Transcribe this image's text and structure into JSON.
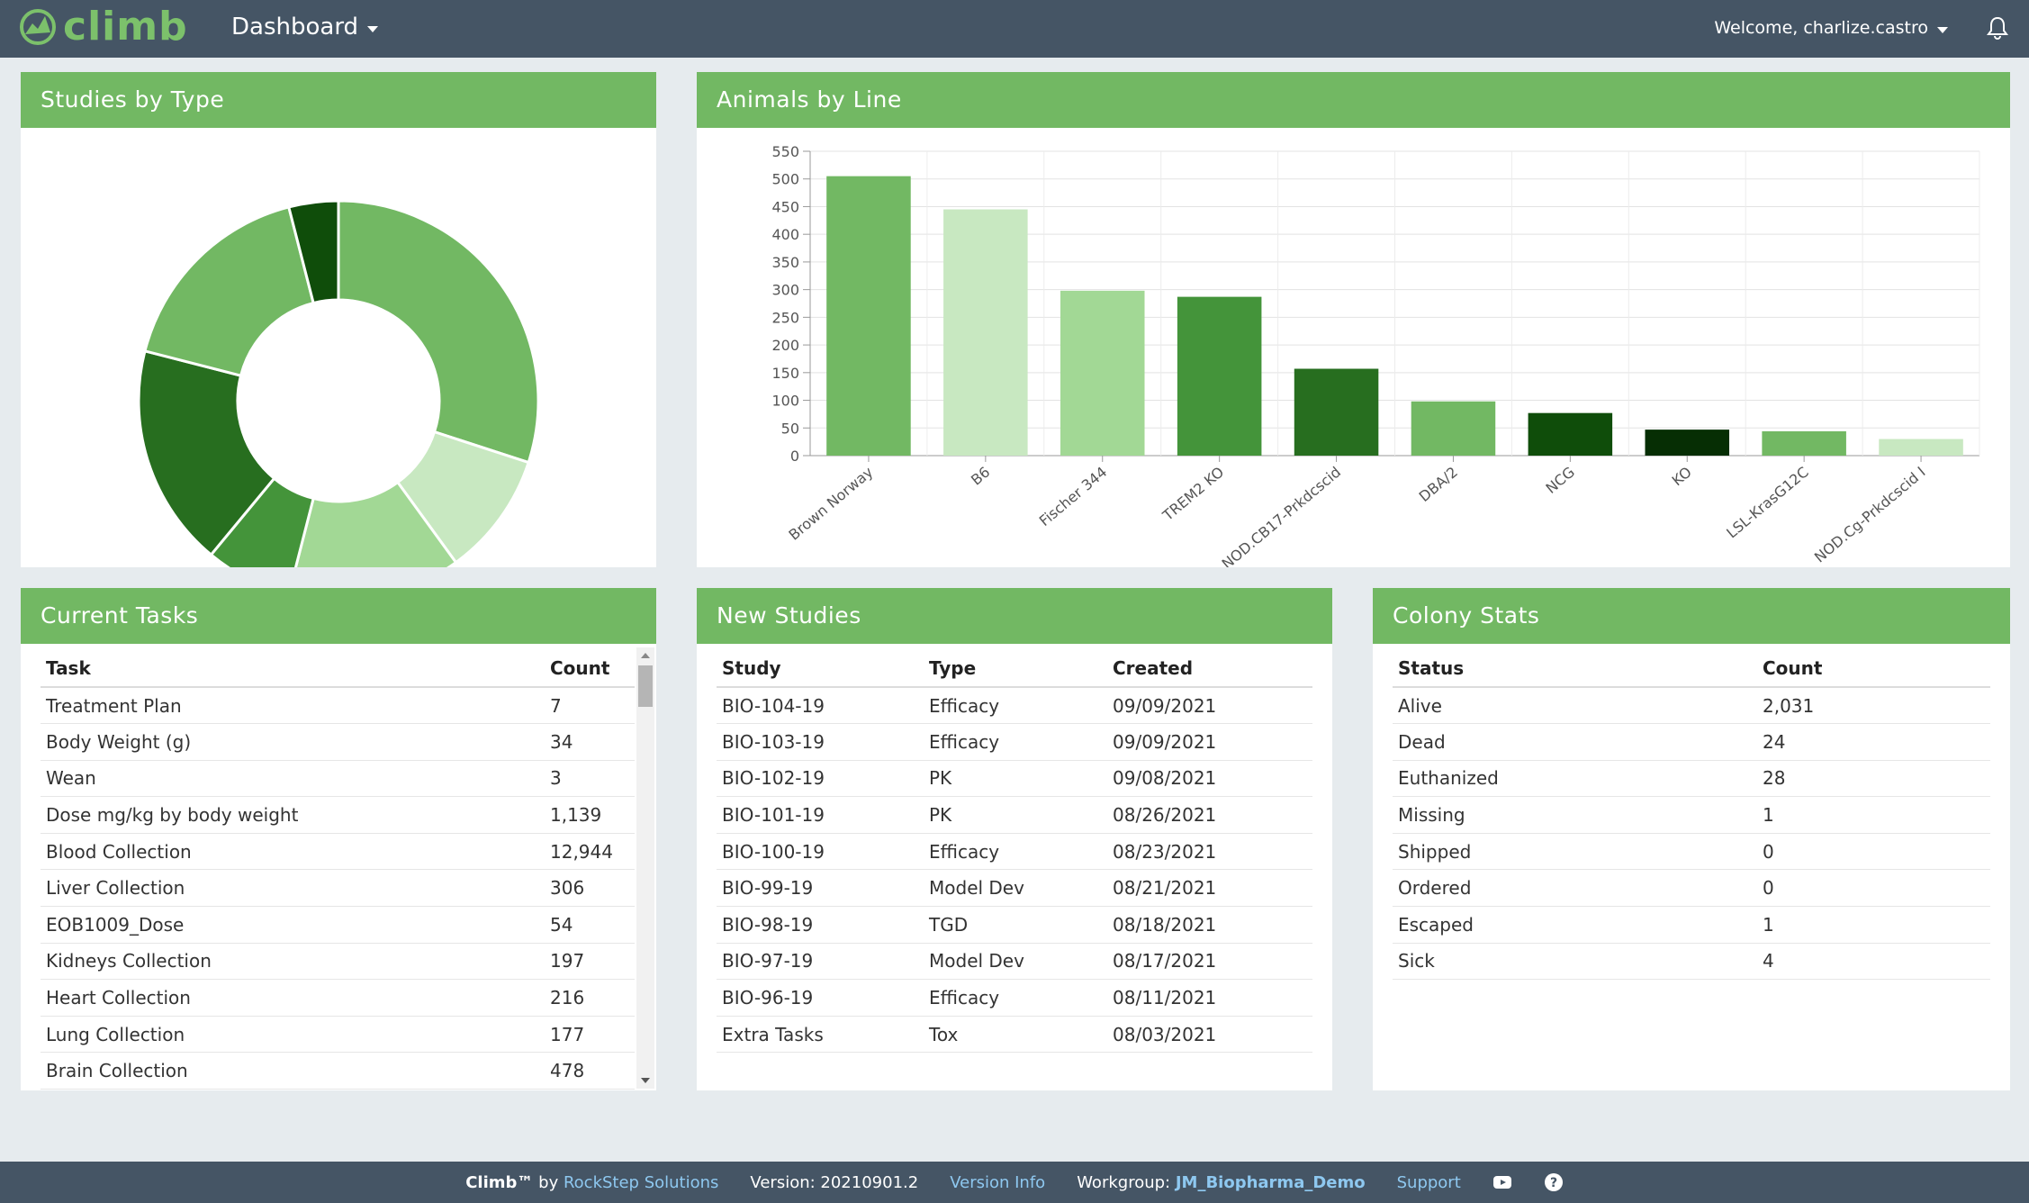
{
  "app": {
    "logo_text": "climb",
    "nav_label": "Dashboard",
    "welcome": "Welcome, charlize.castro"
  },
  "colors": {
    "navbar": "#455565",
    "panel_header": "#72b863",
    "link": "#8ec8f0"
  },
  "panels": {
    "studies_title": "Studies by Type",
    "animals_title": "Animals by Line",
    "tasks_title": "Current Tasks",
    "new_studies_title": "New Studies",
    "colony_title": "Colony Stats"
  },
  "chart_data": [
    {
      "type": "pie",
      "title": "Studies by Type",
      "donut": true,
      "slices": [
        {
          "value": 30,
          "color": "#72b863"
        },
        {
          "value": 10,
          "color": "#c8e8c1"
        },
        {
          "value": 14,
          "color": "#a2d895"
        },
        {
          "value": 7,
          "color": "#44943a"
        },
        {
          "value": 18,
          "color": "#276e1f"
        },
        {
          "value": 17,
          "color": "#72b863"
        },
        {
          "value": 4,
          "color": "#0f4d0a"
        }
      ]
    },
    {
      "type": "bar",
      "title": "Animals by Line",
      "categories": [
        "Brown Norway",
        "B6",
        "Fischer 344",
        "TREM2 KO",
        "NOD.CB17-Prkdcscid",
        "DBA/2",
        "NCG",
        "KO",
        "LSL-KrasG12C",
        "NOD.Cg-Prkdcscid I"
      ],
      "values": [
        505,
        445,
        298,
        287,
        157,
        98,
        77,
        47,
        44,
        30
      ],
      "colors": [
        "#72b863",
        "#c8e8c1",
        "#a2d895",
        "#44943a",
        "#276e1f",
        "#72b863",
        "#0f4d0a",
        "#062e04",
        "#72b863",
        "#c8e8c1"
      ],
      "ylim": [
        0,
        550
      ],
      "yticks": [
        0,
        50,
        100,
        150,
        200,
        250,
        300,
        350,
        400,
        450,
        500,
        550
      ],
      "grid": true
    }
  ],
  "tasks": {
    "headers": [
      "Task",
      "Count"
    ],
    "rows": [
      [
        "Treatment Plan",
        "7"
      ],
      [
        "Body Weight (g)",
        "34"
      ],
      [
        "Wean",
        "3"
      ],
      [
        "Dose mg/kg by body weight",
        "1,139"
      ],
      [
        "Blood Collection",
        "12,944"
      ],
      [
        "Liver Collection",
        "306"
      ],
      [
        "EOB1009_Dose",
        "54"
      ],
      [
        "Kidneys Collection",
        "197"
      ],
      [
        "Heart Collection",
        "216"
      ],
      [
        "Lung Collection",
        "177"
      ],
      [
        "Brain Collection",
        "478"
      ]
    ]
  },
  "new_studies": {
    "headers": [
      "Study",
      "Type",
      "Created"
    ],
    "rows": [
      [
        "BIO-104-19",
        "Efficacy",
        "09/09/2021"
      ],
      [
        "BIO-103-19",
        "Efficacy",
        "09/09/2021"
      ],
      [
        "BIO-102-19",
        "PK",
        "09/08/2021"
      ],
      [
        "BIO-101-19",
        "PK",
        "08/26/2021"
      ],
      [
        "BIO-100-19",
        "Efficacy",
        "08/23/2021"
      ],
      [
        "BIO-99-19",
        "Model Dev",
        "08/21/2021"
      ],
      [
        "BIO-98-19",
        "TGD",
        "08/18/2021"
      ],
      [
        "BIO-97-19",
        "Model Dev",
        "08/17/2021"
      ],
      [
        "BIO-96-19",
        "Efficacy",
        "08/11/2021"
      ],
      [
        "Extra Tasks",
        "Tox",
        "08/03/2021"
      ]
    ]
  },
  "colony": {
    "headers": [
      "Status",
      "Count"
    ],
    "rows": [
      [
        "Alive",
        "2,031"
      ],
      [
        "Dead",
        "24"
      ],
      [
        "Euthanized",
        "28"
      ],
      [
        "Missing",
        "1"
      ],
      [
        "Shipped",
        "0"
      ],
      [
        "Ordered",
        "0"
      ],
      [
        "Escaped",
        "1"
      ],
      [
        "Sick",
        "4"
      ]
    ]
  },
  "footer": {
    "brand": "Climb™",
    "by": "by",
    "company": "RockStep Solutions",
    "version": "Version: 20210901.2",
    "version_info": "Version Info",
    "workgroup_label": "Workgroup:",
    "workgroup": "JM_Biopharma_Demo",
    "support": "Support"
  }
}
